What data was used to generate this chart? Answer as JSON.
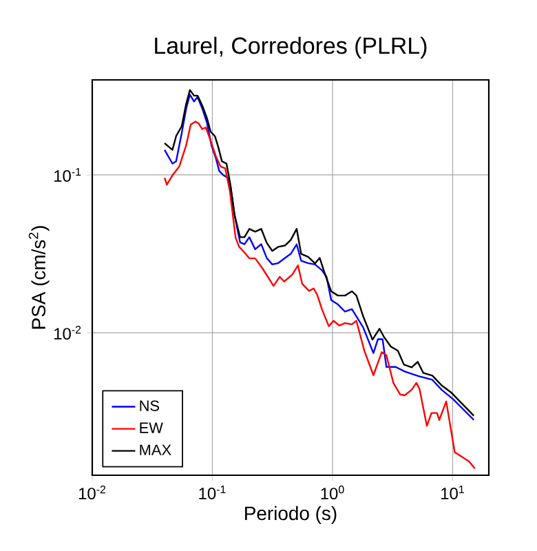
{
  "chart_data": {
    "type": "line",
    "title": "Laurel, Corredores (PLRL)",
    "xlabel": "Periodo (s)",
    "ylabel": "PSA (cm/s$^{2}$)",
    "log": "xy",
    "grid": true,
    "legend": "bottom left",
    "marker": "none",
    "line_style": "solid",
    "xlim": [
      0.01,
      20
    ],
    "ylim": [
      0.00125,
      0.4
    ],
    "xticks": [
      {
        "value": 0.01,
        "label": "10$^{-2}$"
      },
      {
        "value": 0.1,
        "label": "10$^{-1}$"
      },
      {
        "value": 1,
        "label": "10$^{0}$"
      },
      {
        "value": 10,
        "label": "10$^{1}$"
      }
    ],
    "yticks": [
      {
        "value": 0.01,
        "label": "10$^{-2}$"
      },
      {
        "value": 0.1,
        "label": "10$^{-1}$"
      }
    ],
    "series": [
      {
        "name": "NS",
        "color": "#0000ff",
        "x": [
          0.04,
          0.0465,
          0.0499,
          0.0555,
          0.0605,
          0.065,
          0.0704,
          0.0753,
          0.0824,
          0.09,
          0.0982,
          0.1074,
          0.114,
          0.1227,
          0.1338,
          0.142,
          0.153,
          0.17,
          0.185,
          0.203,
          0.227,
          0.255,
          0.283,
          0.315,
          0.353,
          0.403,
          0.449,
          0.503,
          0.548,
          0.626,
          0.715,
          0.816,
          0.892,
          0.975,
          1.11,
          1.27,
          1.45,
          1.58,
          1.8,
          2.19,
          2.39,
          2.61,
          2.81,
          3.35,
          3.99,
          5.2,
          6.78,
          8.09,
          10.1,
          15.0
        ],
        "values": [
          0.144,
          0.118,
          0.122,
          0.183,
          0.263,
          0.323,
          0.292,
          0.312,
          0.263,
          0.215,
          0.154,
          0.126,
          0.106,
          0.1,
          0.096,
          0.084,
          0.0557,
          0.0374,
          0.0364,
          0.0403,
          0.0338,
          0.0364,
          0.0298,
          0.0271,
          0.0276,
          0.0298,
          0.0316,
          0.0363,
          0.0286,
          0.0276,
          0.0271,
          0.0249,
          0.0226,
          0.0161,
          0.0151,
          0.0136,
          0.0141,
          0.0127,
          0.0108,
          0.00743,
          0.0091,
          0.0091,
          0.00607,
          0.00607,
          0.00568,
          0.00531,
          0.00503,
          0.00435,
          0.00379,
          0.0028
        ]
      },
      {
        "name": "EW",
        "color": "#ff0000",
        "x": [
          0.04,
          0.0418,
          0.0465,
          0.053,
          0.0605,
          0.066,
          0.0723,
          0.0768,
          0.0824,
          0.0883,
          0.0966,
          0.1074,
          0.117,
          0.128,
          0.14,
          0.156,
          0.167,
          0.182,
          0.203,
          0.227,
          0.259,
          0.323,
          0.363,
          0.396,
          0.461,
          0.516,
          0.559,
          0.638,
          0.697,
          0.748,
          0.816,
          0.931,
          1.02,
          1.14,
          1.27,
          1.45,
          1.58,
          1.84,
          2.19,
          2.57,
          2.81,
          3.21,
          3.66,
          3.99,
          4.56,
          4.99,
          5.3,
          6.1,
          6.67,
          7.41,
          7.74,
          8.84,
          10.4,
          13.7,
          15.3
        ],
        "values": [
          0.096,
          0.0868,
          0.0994,
          0.113,
          0.154,
          0.208,
          0.218,
          0.212,
          0.195,
          0.2,
          0.165,
          0.13,
          0.113,
          0.11,
          0.0785,
          0.04,
          0.035,
          0.0327,
          0.0296,
          0.0296,
          0.0258,
          0.0198,
          0.0226,
          0.0211,
          0.0233,
          0.0267,
          0.0204,
          0.0184,
          0.0191,
          0.0173,
          0.0141,
          0.011,
          0.0119,
          0.0111,
          0.0115,
          0.0113,
          0.0119,
          0.00769,
          0.00538,
          0.00753,
          0.0072,
          0.00481,
          0.00406,
          0.00401,
          0.00435,
          0.00481,
          0.0044,
          0.00257,
          0.0031,
          0.0031,
          0.0028,
          0.00367,
          0.00175,
          0.00153,
          0.00138
        ]
      },
      {
        "name": "MAX",
        "color": "#000000",
        "x": [
          0.04,
          0.0465,
          0.0499,
          0.0555,
          0.0605,
          0.065,
          0.0704,
          0.0753,
          0.0824,
          0.09,
          0.0966,
          0.105,
          0.112,
          0.12,
          0.131,
          0.14,
          0.153,
          0.17,
          0.185,
          0.203,
          0.227,
          0.255,
          0.283,
          0.315,
          0.353,
          0.403,
          0.449,
          0.503,
          0.548,
          0.626,
          0.715,
          0.782,
          0.853,
          0.975,
          1.11,
          1.27,
          1.45,
          1.58,
          1.8,
          2.15,
          2.46,
          2.68,
          3.06,
          3.5,
          3.93,
          4.56,
          5.12,
          5.69,
          6.78,
          8.09,
          9.66,
          15.0
        ],
        "values": [
          0.159,
          0.144,
          0.176,
          0.203,
          0.282,
          0.345,
          0.318,
          0.318,
          0.275,
          0.23,
          0.188,
          0.176,
          0.15,
          0.122,
          0.118,
          0.0904,
          0.0557,
          0.0403,
          0.0403,
          0.0455,
          0.0437,
          0.0455,
          0.0372,
          0.033,
          0.035,
          0.0357,
          0.0387,
          0.0455,
          0.0316,
          0.0303,
          0.0275,
          0.0298,
          0.0243,
          0.0183,
          0.0172,
          0.0172,
          0.0183,
          0.0172,
          0.0127,
          0.00904,
          0.0106,
          0.0094,
          0.00817,
          0.00769,
          0.00628,
          0.00604,
          0.00654,
          0.00557,
          0.00535,
          0.00464,
          0.0042,
          0.00298
        ]
      }
    ]
  }
}
